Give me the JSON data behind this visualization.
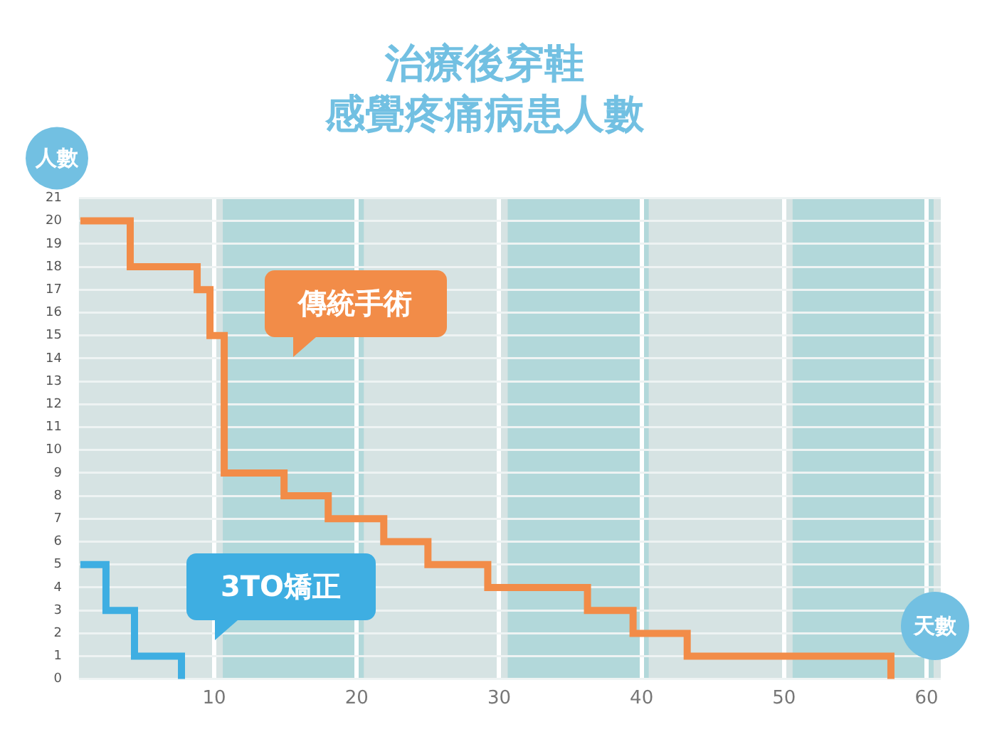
{
  "chart_data": {
    "type": "step",
    "title": "治療後穿鞋",
    "subtitle": "感覺疼痛病患人數",
    "xlabel": "天數",
    "ylabel": "人數",
    "series": [
      {
        "name": "傳統手術",
        "color": "#f28c48",
        "x": [
          0.6,
          4.1,
          8.8,
          9.7,
          10.7,
          14.9,
          18,
          21.9,
          25,
          29.2,
          36.2,
          39.4,
          43.2,
          57.5
        ],
        "values": [
          20,
          18,
          17,
          15,
          9,
          8,
          7,
          6,
          5,
          4,
          3,
          2,
          1,
          0
        ]
      },
      {
        "name": "3TO矯正",
        "color": "#3eaee2",
        "x": [
          0.6,
          2.4,
          4.4,
          7.7
        ],
        "values": [
          5,
          3,
          1,
          0
        ]
      }
    ],
    "xlim": [
      0.5,
      61
    ],
    "xticks": [
      10,
      20,
      30,
      40,
      50,
      60
    ],
    "ylim": [
      0,
      21
    ],
    "yticks": [
      0,
      1,
      2,
      3,
      4,
      5,
      6,
      7,
      8,
      9,
      10,
      11,
      12,
      13,
      14,
      15,
      16,
      17,
      18,
      19,
      20,
      21
    ],
    "bands": [
      {
        "axis": "x",
        "from": 10.6,
        "to": 20.5,
        "color": "#b2d8da"
      },
      {
        "axis": "x",
        "from": 30.6,
        "to": 40.5,
        "color": "#b2d8da"
      },
      {
        "axis": "x",
        "from": 50.6,
        "to": 60.5,
        "color": "#b2d8da"
      }
    ],
    "grid": true,
    "legend": false,
    "marker": "none",
    "line_style": "solid"
  }
}
